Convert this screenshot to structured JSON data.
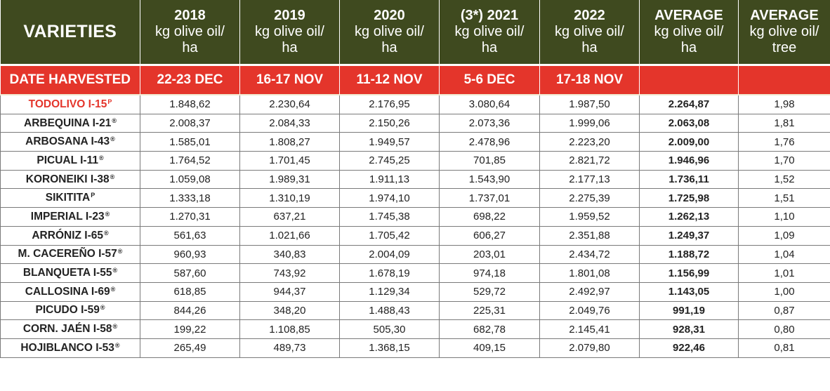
{
  "header": {
    "varieties": "VARIETIES",
    "columns": [
      {
        "top": "2018",
        "line2": "kg olive oil/",
        "line3": "ha"
      },
      {
        "top": "2019",
        "line2": "kg olive oil/",
        "line3": "ha"
      },
      {
        "top": "2020",
        "line2": "kg olive oil/",
        "line3": "ha"
      },
      {
        "top": "(3*) 2021",
        "line2": "kg olive oil/",
        "line3": "ha"
      },
      {
        "top": "2022",
        "line2": "kg olive oil/",
        "line3": "ha"
      },
      {
        "top": "AVERAGE",
        "line2": "kg olive oil/",
        "line3": "ha"
      },
      {
        "top": "AVERAGE",
        "line2": "kg olive oil/",
        "line3": "tree"
      }
    ]
  },
  "date_row": {
    "label": "DATE HARVESTED",
    "values": [
      "22-23 DEC",
      "16-17 NOV",
      "11-12 NOV",
      "5-6 DEC",
      "17-18 NOV",
      "",
      ""
    ]
  },
  "rows": [
    {
      "name": "TODOLIVO I-15",
      "mark": "P",
      "highlight": true,
      "values": [
        "1.848,62",
        "2.230,64",
        "2.176,95",
        "3.080,64",
        "1.987,50",
        "2.264,87",
        "1,98"
      ]
    },
    {
      "name": "ARBEQUINA I-21",
      "mark": "®",
      "highlight": false,
      "values": [
        "2.008,37",
        "2.084,33",
        "2.150,26",
        "2.073,36",
        "1.999,06",
        "2.063,08",
        "1,81"
      ]
    },
    {
      "name": "ARBOSANA I-43",
      "mark": "®",
      "highlight": false,
      "values": [
        "1.585,01",
        "1.808,27",
        "1.949,57",
        "2.478,96",
        "2.223,20",
        "2.009,00",
        "1,76"
      ]
    },
    {
      "name": "PICUAL I-11",
      "mark": "®",
      "highlight": false,
      "values": [
        "1.764,52",
        "1.701,45",
        "2.745,25",
        "701,85",
        "2.821,72",
        "1.946,96",
        "1,70"
      ]
    },
    {
      "name": "KORONEIKI I-38",
      "mark": "®",
      "highlight": false,
      "values": [
        "1.059,08",
        "1.989,31",
        "1.911,13",
        "1.543,90",
        "2.177,13",
        "1.736,11",
        "1,52"
      ]
    },
    {
      "name": "SIKITITA",
      "mark": "P",
      "highlight": false,
      "values": [
        "1.333,18",
        "1.310,19",
        "1.974,10",
        "1.737,01",
        "2.275,39",
        "1.725,98",
        "1,51"
      ]
    },
    {
      "name": "IMPERIAL I-23",
      "mark": "®",
      "highlight": false,
      "values": [
        "1.270,31",
        "637,21",
        "1.745,38",
        "698,22",
        "1.959,52",
        "1.262,13",
        "1,10"
      ]
    },
    {
      "name": "ARRÓNIZ I-65",
      "mark": "®",
      "highlight": false,
      "values": [
        "561,63",
        "1.021,66",
        "1.705,42",
        "606,27",
        "2.351,88",
        "1.249,37",
        "1,09"
      ]
    },
    {
      "name": "M. CACEREÑO I-57",
      "mark": "®",
      "highlight": false,
      "values": [
        "960,93",
        "340,83",
        "2.004,09",
        "203,01",
        "2.434,72",
        "1.188,72",
        "1,04"
      ]
    },
    {
      "name": "BLANQUETA I-55",
      "mark": "®",
      "highlight": false,
      "values": [
        "587,60",
        "743,92",
        "1.678,19",
        "974,18",
        "1.801,08",
        "1.156,99",
        "1,01"
      ]
    },
    {
      "name": "CALLOSINA I-69",
      "mark": "®",
      "highlight": false,
      "values": [
        "618,85",
        "944,37",
        "1.129,34",
        "529,72",
        "2.492,97",
        "1.143,05",
        "1,00"
      ]
    },
    {
      "name": "PICUDO I-59",
      "mark": "®",
      "highlight": false,
      "values": [
        "844,26",
        "348,20",
        "1.488,43",
        "225,31",
        "2.049,76",
        "991,19",
        "0,87"
      ]
    },
    {
      "name": "CORN. JAÉN I-58",
      "mark": "®",
      "highlight": false,
      "values": [
        "199,22",
        "1.108,85",
        "505,30",
        "682,78",
        "2.145,41",
        "928,31",
        "0,80"
      ]
    },
    {
      "name": "HOJIBLANCO I-53",
      "mark": "®",
      "highlight": false,
      "values": [
        "265,49",
        "489,73",
        "1.368,15",
        "409,15",
        "2.079,80",
        "922,46",
        "0,81"
      ]
    }
  ],
  "colors": {
    "header_bg": "#3f4a1f",
    "date_bg": "#e4352b",
    "highlight_text": "#e4352b"
  }
}
